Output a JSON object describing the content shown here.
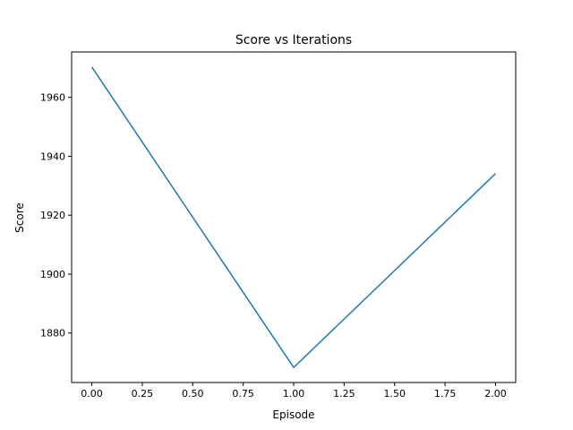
{
  "chart_data": {
    "type": "line",
    "title": "Score vs Iterations",
    "xlabel": "Episode",
    "ylabel": "Score",
    "xlim": [
      -0.1,
      2.1
    ],
    "ylim": [
      1863.2,
      1975.4
    ],
    "xticks": [
      0.0,
      0.25,
      0.5,
      0.75,
      1.0,
      1.25,
      1.5,
      1.75,
      2.0
    ],
    "xtick_labels": [
      "0.00",
      "0.25",
      "0.50",
      "0.75",
      "1.00",
      "1.25",
      "1.50",
      "1.75",
      "2.00"
    ],
    "yticks": [
      1880,
      1900,
      1920,
      1940,
      1960
    ],
    "ytick_labels": [
      "1880",
      "1900",
      "1920",
      "1940",
      "1960"
    ],
    "grid": false,
    "legend": "none",
    "series": [
      {
        "color": "#1f77b4",
        "x": [
          0,
          1,
          2
        ],
        "y": [
          1970.3,
          1868.3,
          1934.1
        ]
      }
    ]
  }
}
